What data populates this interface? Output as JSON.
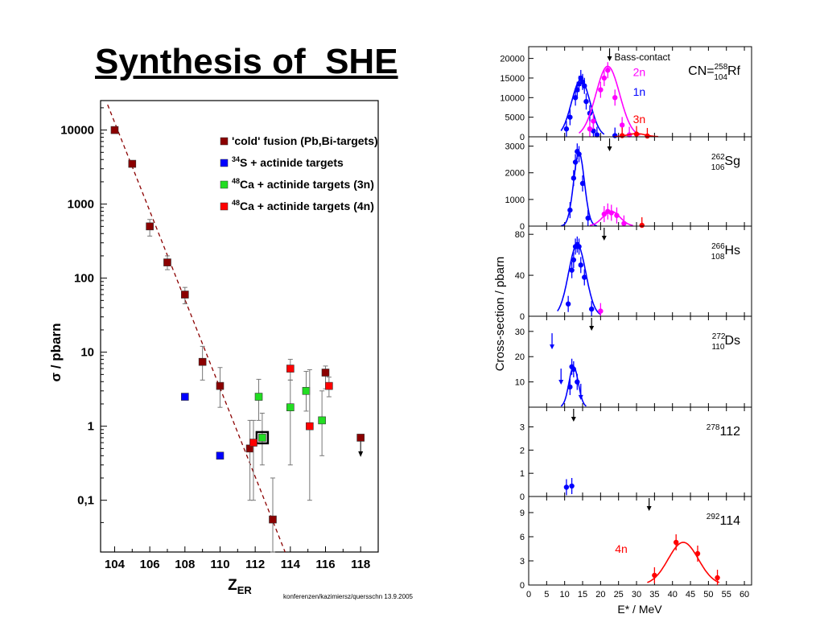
{
  "title": "Synthesis of  SHE",
  "footnote": "konferenzen/kazimiersz/quersschn 13.9.2005",
  "chart_data": [
    {
      "type": "scatter",
      "xlabel": "Z",
      "xlabel_sub": "ER",
      "ylabel": "σ / pbarn",
      "yscale": "log",
      "xlim": [
        103.2,
        119
      ],
      "ylim": [
        0.02,
        25000
      ],
      "xticks": [
        104,
        106,
        108,
        110,
        112,
        114,
        116,
        118
      ],
      "yticks": [
        {
          "value": 10000,
          "label": "10000"
        },
        {
          "value": 1000,
          "label": "1000"
        },
        {
          "value": 100,
          "label": "100"
        },
        {
          "value": 10,
          "label": "10"
        },
        {
          "value": 1,
          "label": "1"
        },
        {
          "value": 0.1,
          "label": "0,1"
        }
      ],
      "legend": "top-right",
      "series": [
        {
          "name": "'cold' fusion (Pb,Bi-targets)",
          "color": "#8b0000",
          "points": [
            {
              "x": 104,
              "y": 10000
            },
            {
              "x": 105,
              "y": 3500
            },
            {
              "x": 106,
              "y": 500,
              "yerr": [
                370,
                620
              ]
            },
            {
              "x": 107,
              "y": 163,
              "yerr": [
                130,
                200
              ]
            },
            {
              "x": 108,
              "y": 60,
              "yerr": [
                45,
                75
              ]
            },
            {
              "x": 109,
              "y": 7.4,
              "yerr": [
                4.2,
                12
              ]
            },
            {
              "x": 110,
              "y": 3.5,
              "yerr": [
                1.8,
                6.2
              ]
            },
            {
              "x": 111.7,
              "y": 0.5,
              "yerr": [
                0.1,
                1.2
              ]
            },
            {
              "x": 113,
              "y": 0.055,
              "yerr": [
                0.02,
                0.2
              ]
            },
            {
              "x": 116,
              "y": 5.3,
              "yerr": [
                3.2,
                6.5
              ]
            },
            {
              "x": 118,
              "y": 0.7,
              "upper_limit": true
            }
          ]
        },
        {
          "name": "³⁴S + actinide targets",
          "name_sup": "34",
          "name_main": "S + actinide targets",
          "color": "#0000ff",
          "points": [
            {
              "x": 108,
              "y": 2.5
            },
            {
              "x": 110,
              "y": 0.4
            }
          ]
        },
        {
          "name": "⁴⁸Ca + actinide targets (3n)",
          "name_sup": "48",
          "name_main": "Ca + actinide targets (3n)",
          "color": "#22dd22",
          "points": [
            {
              "x": 112.2,
              "y": 2.5,
              "yerr": [
                1.2,
                4.3
              ]
            },
            {
              "x": 112.4,
              "y": 0.7,
              "yerr": [
                0.3,
                1.5
              ],
              "boxed": true
            },
            {
              "x": 114,
              "y": 1.8,
              "yerr": [
                0.3,
                4.2
              ]
            },
            {
              "x": 114.9,
              "y": 3.0,
              "yerr": [
                1.6,
                5.5
              ]
            },
            {
              "x": 115.8,
              "y": 1.2,
              "yerr": [
                0.4,
                3.0
              ]
            }
          ]
        },
        {
          "name": "⁴⁸Ca + actinide targets (4n)",
          "name_sup": "48",
          "name_main": "Ca + actinide targets (4n)",
          "color": "#ff0000",
          "points": [
            {
              "x": 111.9,
              "y": 0.6,
              "yerr": [
                0.1,
                1.2
              ]
            },
            {
              "x": 114,
              "y": 6.0,
              "yerr": [
                4.2,
                8.0
              ]
            },
            {
              "x": 115.1,
              "y": 1.0,
              "yerr": [
                0.1,
                5.8
              ]
            },
            {
              "x": 116.2,
              "y": 3.5,
              "yerr": [
                2.5,
                4.6
              ]
            }
          ]
        }
      ],
      "trend_line": {
        "style": "dashed",
        "color": "#8b0000",
        "points": [
          [
            103.6,
            22000
          ],
          [
            113.7,
            0.02
          ]
        ]
      }
    },
    {
      "type": "line",
      "xlabel": "E* / MeV",
      "ylabel": "Cross-section / pbarn",
      "xlim": [
        0,
        62
      ],
      "xticks": [
        0,
        5,
        10,
        15,
        20,
        25,
        30,
        35,
        40,
        45,
        50,
        55,
        60
      ],
      "panels": [
        {
          "id": "rf",
          "ylim": [
            0,
            23000
          ],
          "yticks": [
            0,
            5000,
            10000,
            15000,
            20000
          ],
          "label_main": "CN=",
          "label_sup": "258",
          "label_sub": "104",
          "label_el": "Rf",
          "arrow_x": 22.5,
          "arrow_label": "Bass-contact",
          "series_labels": [
            {
              "text": "2n",
              "color": "#ff00ff",
              "x": 29,
              "y": 15500
            },
            {
              "text": "1n",
              "color": "#0000ff",
              "x": 29,
              "y": 10500
            },
            {
              "text": "3n",
              "color": "#ff0000",
              "x": 29,
              "y": 3500
            }
          ],
          "series": [
            {
              "color": "#0000ff",
              "curve": {
                "amp": 14500,
                "mu": 14.5,
                "sigma": 2.6,
                "from": 9,
                "to": 21
              },
              "points": [
                [
                  10.5,
                  2000
                ],
                [
                  11.5,
                  5000
                ],
                [
                  13,
                  10000
                ],
                [
                  13.5,
                  12000
                ],
                [
                  14,
                  13500
                ],
                [
                  14.5,
                  15000
                ],
                [
                  15,
                  14000
                ],
                [
                  15.5,
                  13000
                ],
                [
                  16,
                  9000
                ],
                [
                  17,
                  6000
                ],
                [
                  18,
                  1500
                ],
                [
                  19,
                  500
                ],
                [
                  24,
                  300
                ]
              ]
            },
            {
              "color": "#ff00ff",
              "curve": {
                "amp": 18000,
                "mu": 22,
                "sigma": 3.3,
                "from": 14,
                "to": 31
              },
              "points": [
                [
                  17,
                  2000
                ],
                [
                  18,
                  4000
                ],
                [
                  20,
                  12000
                ],
                [
                  21,
                  15000
                ],
                [
                  22,
                  17000
                ],
                [
                  24,
                  10000
                ],
                [
                  26,
                  3000
                ],
                [
                  28,
                  500
                ]
              ]
            },
            {
              "color": "#ff0000",
              "curve": {
                "amp": 800,
                "mu": 30,
                "sigma": 2.5,
                "from": 24,
                "to": 36
              },
              "points": [
                [
                  26,
                  300
                ],
                [
                  30,
                  700
                ],
                [
                  33,
                  200
                ]
              ]
            }
          ]
        },
        {
          "id": "sg",
          "ylim": [
            0,
            3350
          ],
          "yticks": [
            0,
            1000,
            2000,
            3000
          ],
          "label_sup": "262",
          "label_sub": "106",
          "label_el": "Sg",
          "arrow_x": 22.5,
          "series": [
            {
              "color": "#0000ff",
              "curve": {
                "amp": 2750,
                "mu": 14,
                "sigma": 1.5,
                "from": 9,
                "to": 19
              },
              "points": [
                [
                  11.5,
                  600
                ],
                [
                  12.5,
                  1800
                ],
                [
                  13,
                  2400
                ],
                [
                  13.5,
                  2800
                ],
                [
                  14,
                  2700
                ],
                [
                  15,
                  1600
                ],
                [
                  16.5,
                  300
                ]
              ]
            },
            {
              "color": "#ff00ff",
              "curve": {
                "amp": 550,
                "mu": 23,
                "sigma": 2.4,
                "from": 17,
                "to": 29
              },
              "points": [
                [
                  21,
                  450
                ],
                [
                  22,
                  550
                ],
                [
                  23,
                  500
                ],
                [
                  24.5,
                  400
                ],
                [
                  26.5,
                  100
                ]
              ]
            },
            {
              "color": "#ff0000",
              "points": [
                [
                  31.5,
                  30
                ]
              ]
            }
          ]
        },
        {
          "id": "hs",
          "ylim": [
            0,
            88
          ],
          "yticks": [
            0,
            40,
            80
          ],
          "label_sup": "266",
          "label_sub": "108",
          "label_el": "Hs",
          "arrow_x": 21,
          "series": [
            {
              "color": "#0000ff",
              "curve": {
                "amp": 70,
                "mu": 13.5,
                "sigma": 2.4,
                "from": 8,
                "to": 20
              },
              "points": [
                [
                  11,
                  12
                ],
                [
                  12,
                  45
                ],
                [
                  12.5,
                  55
                ],
                [
                  13,
                  68
                ],
                [
                  13.5,
                  70
                ],
                [
                  14,
                  68
                ],
                [
                  14.5,
                  50
                ],
                [
                  15.5,
                  38
                ],
                [
                  17.5,
                  7
                ]
              ]
            },
            {
              "color": "#ff00ff",
              "points": [
                [
                  20,
                  5
                ]
              ]
            }
          ]
        },
        {
          "id": "ds",
          "ylim": [
            0,
            36
          ],
          "yticks": [
            10,
            20,
            30
          ],
          "label_sup": "272",
          "label_sub": "110",
          "label_el": "Ds",
          "arrow_x": 17.5,
          "series": [
            {
              "color": "#0000ff",
              "curve": {
                "amp": 16,
                "mu": 12.5,
                "sigma": 1.3,
                "from": 9,
                "to": 16
              },
              "points": [
                [
                  11.5,
                  8
                ],
                [
                  12,
                  16
                ],
                [
                  12.5,
                  15
                ],
                [
                  13.5,
                  10
                ]
              ],
              "upper_limits": [
                [
                  6.5,
                  28
                ],
                [
                  9,
                  14
                ],
                [
                  14.5,
                  8
                ]
              ]
            }
          ]
        },
        {
          "id": "e112",
          "ylim": [
            0,
            3.85
          ],
          "yticks": [
            0,
            1,
            2,
            3
          ],
          "label_sup": "278",
          "label_el": "112",
          "arrow_x": 12.5,
          "series": [
            {
              "color": "#0000ff",
              "points": [
                [
                  10.5,
                  0.4
                ],
                [
                  12,
                  0.45
                ]
              ]
            }
          ]
        },
        {
          "id": "e114",
          "ylim": [
            0,
            11
          ],
          "yticks": [
            0,
            3,
            6,
            9
          ],
          "label_sup": "292",
          "label_el": "114",
          "label_color": "#000000",
          "arrow_x": 33.5,
          "series_labels": [
            {
              "text": "4n",
              "color": "#ff0000",
              "x": 24,
              "y": 4
            }
          ],
          "series": [
            {
              "color": "#ff0000",
              "curve": {
                "amp": 5.3,
                "mu": 43,
                "sigma": 4.2,
                "from": 33,
                "to": 53
              },
              "points": [
                [
                  35,
                  1.2
                ],
                [
                  41,
                  5.3
                ],
                [
                  47,
                  3.9
                ],
                [
                  52.5,
                  0.9
                ]
              ]
            }
          ]
        }
      ]
    }
  ]
}
